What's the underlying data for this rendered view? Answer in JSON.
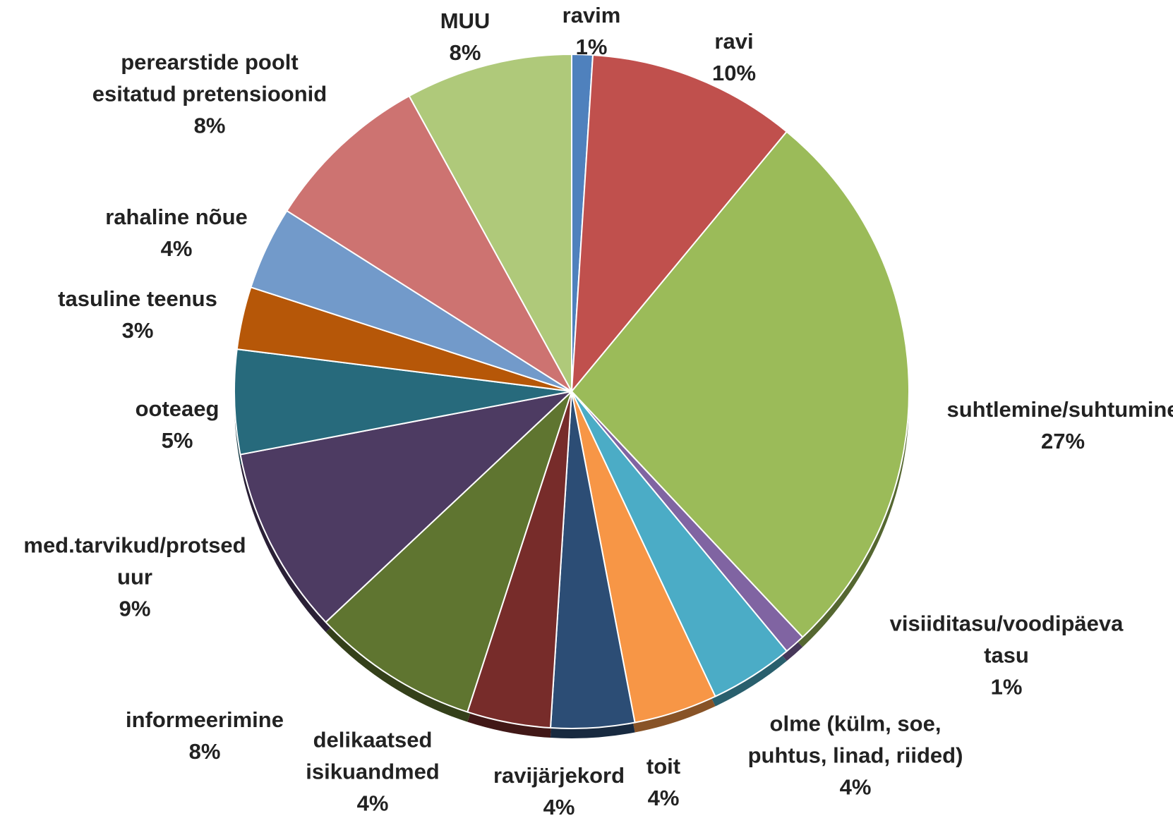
{
  "chart_data": {
    "type": "pie",
    "title": "",
    "slices": [
      {
        "label_lines": [
          "ravim"
        ],
        "value_label": "1%",
        "value": 1,
        "color": "#4f81bd"
      },
      {
        "label_lines": [
          "ravi"
        ],
        "value_label": "10%",
        "value": 10,
        "color": "#c0504d"
      },
      {
        "label_lines": [
          "suhtlemine/suhtumine"
        ],
        "value_label": "27%",
        "value": 27,
        "color": "#9bbb59"
      },
      {
        "label_lines": [
          "visiiditasu/voodipäeva",
          "tasu"
        ],
        "value_label": "1%",
        "value": 1,
        "color": "#8064a2"
      },
      {
        "label_lines": [
          "olme (külm, soe,",
          "puhtus, linad, riided)"
        ],
        "value_label": "4%",
        "value": 4,
        "color": "#4bacc6"
      },
      {
        "label_lines": [
          "toit"
        ],
        "value_label": "4%",
        "value": 4,
        "color": "#f79646"
      },
      {
        "label_lines": [
          "ravijärjekord"
        ],
        "value_label": "4%",
        "value": 4,
        "color": "#2c4d75"
      },
      {
        "label_lines": [
          "delikaatsed",
          "isikuandmed"
        ],
        "value_label": "4%",
        "value": 4,
        "color": "#772c2a"
      },
      {
        "label_lines": [
          "informeerimine"
        ],
        "value_label": "8%",
        "value": 8,
        "color": "#5f7530"
      },
      {
        "label_lines": [
          "med.tarvikud/protsed",
          "uur"
        ],
        "value_label": "9%",
        "value": 9,
        "color": "#4d3b62"
      },
      {
        "label_lines": [
          "ooteaeg"
        ],
        "value_label": "5%",
        "value": 5,
        "color": "#276a7c"
      },
      {
        "label_lines": [
          "tasuline teenus"
        ],
        "value_label": "3%",
        "value": 3,
        "color": "#b65708"
      },
      {
        "label_lines": [
          "rahaline nõue"
        ],
        "value_label": "4%",
        "value": 4,
        "color": "#729aca"
      },
      {
        "label_lines": [
          "perearstide poolt",
          "esitatud pretensioonid"
        ],
        "value_label": "8%",
        "value": 8,
        "color": "#cd7371"
      },
      {
        "label_lines": [
          "MUU"
        ],
        "value_label": "8%",
        "value": 8,
        "color": "#afc97a"
      }
    ]
  }
}
